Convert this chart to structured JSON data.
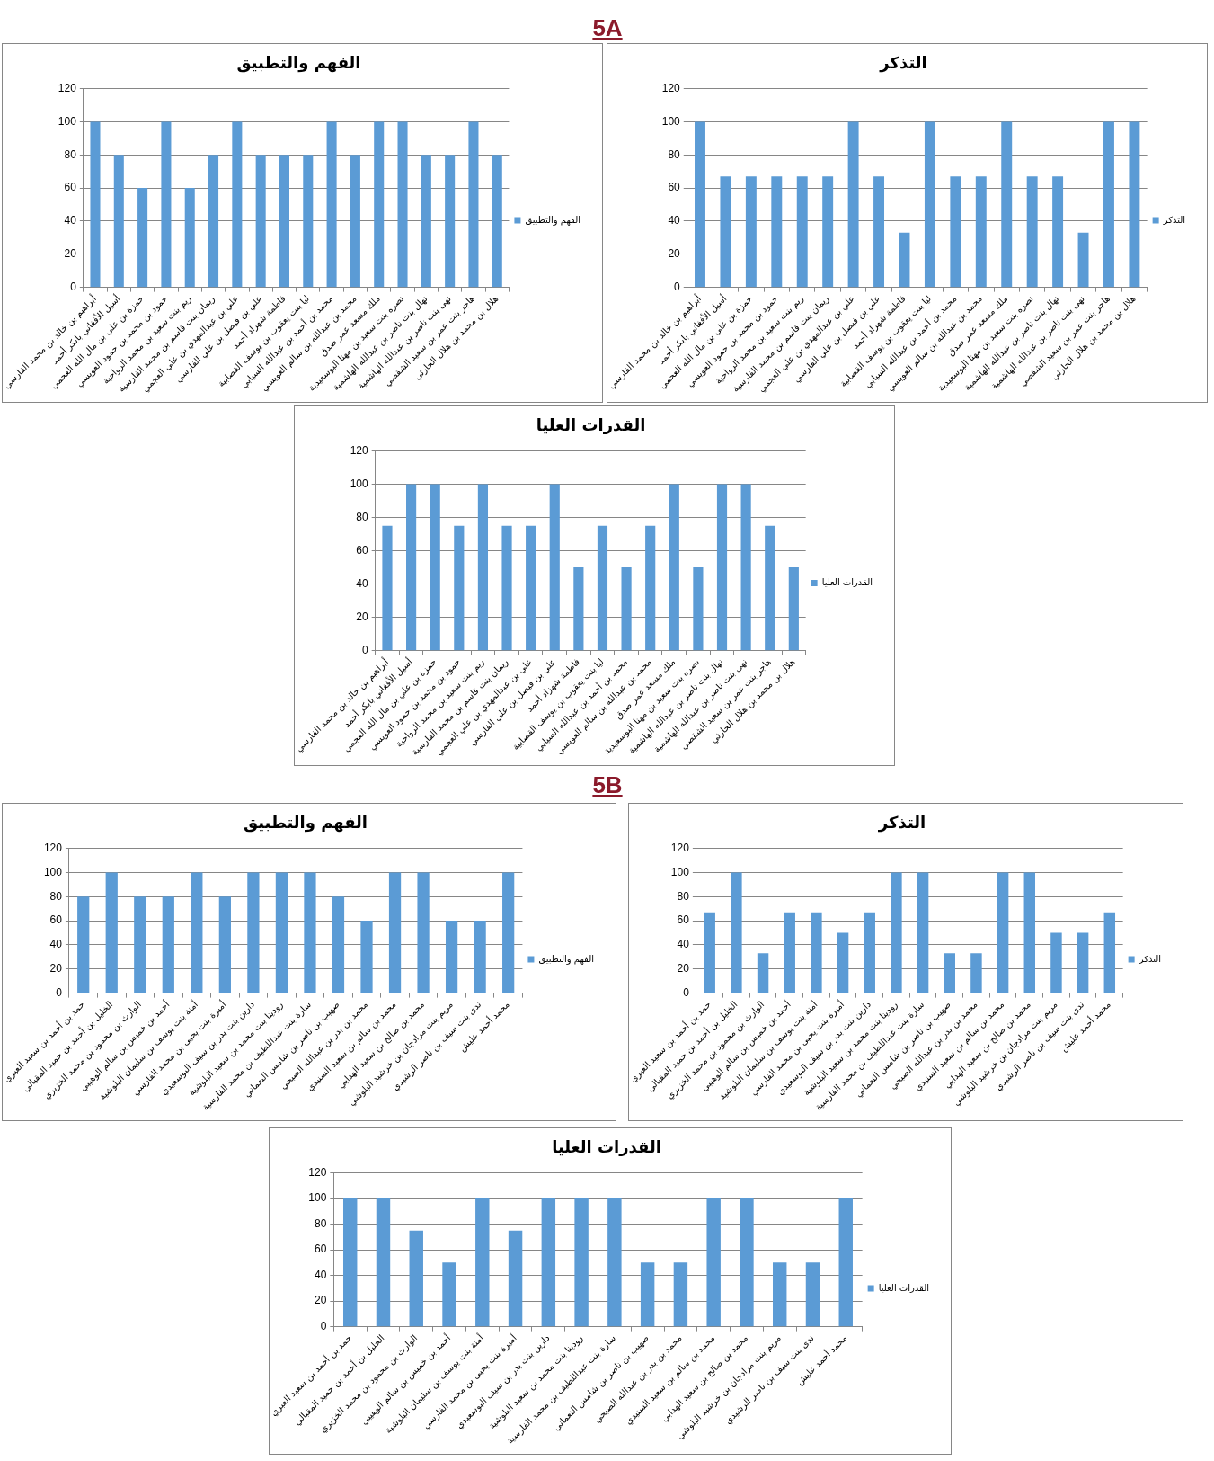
{
  "chart_data": [
    {
      "type": "other",
      "title": "5A"
    },
    {
      "type": "bar",
      "title": "الفهم والتطبيق",
      "categories": [
        "أبراهيم بن خالد بن محمد الفارسي",
        "أسيل الأفغاني بابكر أحمد",
        "حمزة بن علي بن مال الله العجمي",
        "حمود بن محمد بن حمود العويسي",
        "ريم بنت سعيد بن محمد الرواحية",
        "ريمان بنت قاسم بن محمد الفارسية",
        "علي بن عبدالمهدي بن علي العجمي",
        "علي بن فيصل بن علي الفارسي",
        "فاطمة شهزاد أحمد",
        "ليا بنت يعقوب بن يوسف القصابية",
        "محمد بن أحمد بن عبدالله السيابي",
        "محمد بن عبدالله بن سالم العويسي",
        "ملك مسعد عمر صدق",
        "نصره بنت سعيد بن مهنا البوسعيدية",
        "نهال بنت ناصر بن عبدالله الهاشمية",
        "نهى بنت ناصر بن عبدالله الهاشمية",
        "هاجر بنت عمر بن سعيد الشقصي",
        "هلال بن محمد بن هلال الحارثي"
      ],
      "series": [
        {
          "name": "الفهم والتطبيق",
          "color": "#5b9bd5",
          "values": [
            100,
            80,
            60,
            100,
            60,
            80,
            100,
            80,
            80,
            80,
            100,
            80,
            100,
            100,
            80,
            80,
            100,
            80
          ]
        }
      ],
      "ylim": [
        0,
        120
      ],
      "yticks": [
        0,
        20,
        40,
        60,
        80,
        100,
        120
      ],
      "grid": "y",
      "legend": "right"
    },
    {
      "type": "bar",
      "title": "التذكر",
      "categories": [
        "أبراهيم بن خالد بن محمد الفارسي",
        "أسيل الأفغاني بابكر أحمد",
        "حمزة بن علي بن مال الله العجمي",
        "حمود بن محمد بن حمود العويسي",
        "ريم بنت سعيد بن محمد الرواحية",
        "ريمان بنت قاسم بن محمد الفارسية",
        "علي بن عبدالمهدي بن علي العجمي",
        "علي بن فيصل بن علي الفارسي",
        "فاطمة شهزاد أحمد",
        "ليا بنت يعقوب بن يوسف القصابية",
        "محمد بن أحمد بن عبدالله السيابي",
        "محمد بن عبدالله بن سالم العويسي",
        "ملك مسعد عمر صدق",
        "نصره بنت سعيد بن مهنا البوسعيدية",
        "نهال بنت ناصر بن عبدالله الهاشمية",
        "نهى بنت ناصر بن عبدالله الهاشمية",
        "هاجر بنت عمر بن سعيد الشقصي",
        "هلال بن محمد بن هلال الحارثي"
      ],
      "series": [
        {
          "name": "التذكر",
          "color": "#5b9bd5",
          "values": [
            100,
            67,
            67,
            67,
            67,
            67,
            100,
            67,
            33,
            100,
            67,
            67,
            100,
            67,
            67,
            33,
            100,
            100
          ]
        }
      ],
      "ylim": [
        0,
        120
      ],
      "yticks": [
        0,
        20,
        40,
        60,
        80,
        100,
        120
      ],
      "grid": "y",
      "legend": "right"
    },
    {
      "type": "bar",
      "title": "القدرات العليا",
      "categories": [
        "أبراهيم بن خالد بن محمد الفارسي",
        "أسيل الأفغاني بابكر أحمد",
        "حمزة بن علي بن مال الله العجمي",
        "حمود بن محمد بن حمود العويسي",
        "ريم بنت سعيد بن محمد الرواحية",
        "ريمان بنت قاسم بن محمد الفارسية",
        "علي بن عبدالمهدي بن علي العجمي",
        "علي بن فيصل بن علي الفارسي",
        "فاطمة شهزاد أحمد",
        "ليا بنت يعقوب بن يوسف القصابية",
        "محمد بن أحمد بن عبدالله السيابي",
        "محمد بن عبدالله بن سالم العويسي",
        "ملك مسعد عمر صدق",
        "نصره بنت سعيد بن مهنا البوسعيدية",
        "نهال بنت ناصر بن عبدالله الهاشمية",
        "نهى بنت ناصر بن عبدالله الهاشمية",
        "هاجر بنت عمر بن سعيد الشقصي",
        "هلال بن محمد بن هلال الحارثي"
      ],
      "series": [
        {
          "name": "القدرات العليا",
          "color": "#5b9bd5",
          "values": [
            75,
            100,
            100,
            75,
            100,
            75,
            75,
            100,
            50,
            75,
            50,
            75,
            100,
            50,
            100,
            100,
            75,
            50
          ]
        }
      ],
      "ylim": [
        0,
        120
      ],
      "yticks": [
        0,
        20,
        40,
        60,
        80,
        100,
        120
      ],
      "grid": "y",
      "legend": "right"
    },
    {
      "type": "other",
      "title": "5B"
    },
    {
      "type": "bar",
      "title": "الفهم والتطبيق",
      "categories": [
        "حمد بن أحمد بن سعيد العبري",
        "الخليل بن أحمد بن حميد المقبالي",
        "الوارث بن محمود بن محمد الخزيري",
        "أحمد بن خميس بن سالم الوهيبي",
        "أمنة بنت يوسف بن سليمان البلوشية",
        "أميرة بنت يحيى بن محمد الفارسي",
        "دارين بنت بدر بن سيف البوسعيدي",
        "رودينا بنت محمد بن سعيد البلوشية",
        "سارة بنت عبداللطيف بن محمد الفارسية",
        "صهيب بن ناصر بن شامس النعماني",
        "محمد بن بدر بن عبدالله الصبحي",
        "محمد بن سالم بن سعيد السنيدي",
        "محمد بن صالح بن سعيد الهدابي",
        "مريم بنت مرادجان بن خرشيد البلوشي",
        "ندى بنت سيف بن ناصر الرشيدي",
        "محمد أحمد عليش"
      ],
      "series": [
        {
          "name": "الفهم والتطبيق",
          "color": "#5b9bd5",
          "values": [
            80,
            100,
            80,
            80,
            100,
            80,
            100,
            100,
            100,
            80,
            60,
            100,
            100,
            60,
            60,
            100
          ]
        }
      ],
      "ylim": [
        0,
        120
      ],
      "yticks": [
        0,
        20,
        40,
        60,
        80,
        100,
        120
      ],
      "grid": "y",
      "legend": "right"
    },
    {
      "type": "bar",
      "title": "التذكر",
      "categories": [
        "حمد بن أحمد بن سعيد العبري",
        "الخليل بن أحمد بن حميد المقبالي",
        "الوارث بن محمود بن محمد الخزيري",
        "أحمد بن خميس بن سالم الوهيبي",
        "أمنة بنت يوسف بن سليمان البلوشية",
        "أميرة بنت يحيى بن محمد الفارسي",
        "دارين بنت بدر بن سيف البوسعيدي",
        "رودينا بنت محمد بن سعيد البلوشية",
        "سارة بنت عبداللطيف بن محمد الفارسية",
        "صهيب بن ناصر بن شامس النعماني",
        "محمد بن بدر بن عبدالله الصبحي",
        "محمد بن سالم بن سعيد السنيدي",
        "محمد بن صالح بن سعيد الهدابي",
        "مريم بنت مرادجان بن خرشيد البلوشي",
        "ندى بنت سيف بن ناصر الرشيدي",
        "محمد أحمد عليش"
      ],
      "series": [
        {
          "name": "التذكر",
          "color": "#5b9bd5",
          "values": [
            67,
            100,
            33,
            67,
            67,
            50,
            67,
            100,
            100,
            33,
            33,
            100,
            100,
            50,
            50,
            67
          ]
        }
      ],
      "ylim": [
        0,
        120
      ],
      "yticks": [
        0,
        20,
        40,
        60,
        80,
        100,
        120
      ],
      "grid": "y",
      "legend": "right"
    },
    {
      "type": "bar",
      "title": "القدرات العليا",
      "categories": [
        "حمد بن أحمد بن سعيد العبري",
        "الخليل بن أحمد بن حميد المقبالي",
        "الوارث بن محمود بن محمد الخزيري",
        "أحمد بن خميس بن سالم الوهيبي",
        "أمنة بنت يوسف بن سليمان البلوشية",
        "أميرة بنت يحيى بن محمد الفارسي",
        "دارين بنت بدر بن سيف البوسعيدي",
        "رودينا بنت محمد بن سعيد البلوشية",
        "سارة بنت عبداللطيف بن محمد الفارسية",
        "صهيب بن ناصر بن شامس النعماني",
        "محمد بن بدر بن عبدالله الصبحي",
        "محمد بن سالم بن سعيد السنيدي",
        "محمد بن صالح بن سعيد الهدابي",
        "مريم بنت مرادجان بن خرشيد البلوشي",
        "ندى بنت سيف بن ناصر الرشيدي",
        "محمد أحمد عليش"
      ],
      "series": [
        {
          "name": "القدرات العليا",
          "color": "#5b9bd5",
          "values": [
            100,
            100,
            75,
            50,
            100,
            75,
            100,
            100,
            100,
            50,
            50,
            100,
            100,
            50,
            50,
            100
          ]
        }
      ],
      "ylim": [
        0,
        120
      ],
      "yticks": [
        0,
        20,
        40,
        60,
        80,
        100,
        120
      ],
      "grid": "y",
      "legend": "right"
    }
  ]
}
